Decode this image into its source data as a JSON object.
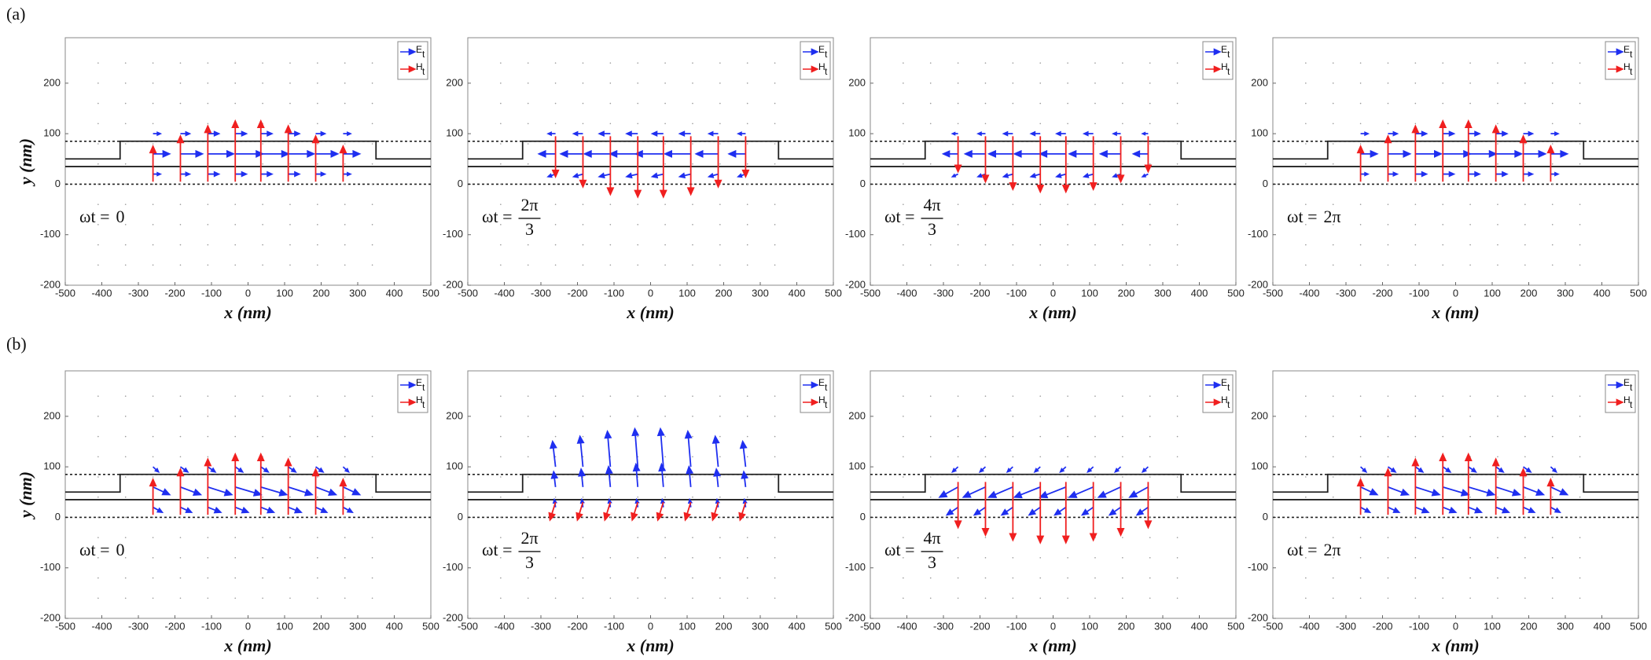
{
  "panel_labels": [
    "(a)",
    "(b)"
  ],
  "chart_data": [
    {
      "type": "quiver",
      "xlabel": "x (nm)",
      "ylabel": "y (nm)",
      "omega": "ωt =",
      "phase": "0",
      "xlim": [
        -500,
        500
      ],
      "ylim": [
        -200,
        290
      ],
      "xticks": [
        -500,
        -400,
        -300,
        -200,
        -100,
        0,
        100,
        200,
        300,
        400,
        500
      ],
      "yticks": [
        -200,
        -100,
        0,
        100,
        200
      ],
      "x": [
        -260,
        -185,
        -110,
        -35,
        35,
        110,
        185,
        260
      ],
      "rows": [
        100,
        60,
        20
      ],
      "series": [
        {
          "name": "E",
          "sub": "t",
          "color": "#1f2ff0",
          "u": [
            [
              20,
              25,
              30,
              30,
              30,
              30,
              25,
              20
            ],
            [
              45,
              60,
              70,
              75,
              75,
              70,
              60,
              45
            ],
            [
              20,
              25,
              30,
              30,
              30,
              30,
              25,
              20
            ]
          ],
          "v": [
            [
              0,
              0,
              0,
              0,
              0,
              0,
              0,
              0
            ],
            [
              0,
              0,
              0,
              0,
              0,
              0,
              0,
              0
            ],
            [
              0,
              0,
              0,
              0,
              0,
              0,
              0,
              0
            ]
          ]
        },
        {
          "name": "H",
          "sub": "t",
          "color": "#f01f1f",
          "y": 5,
          "u": [
            0,
            0,
            0,
            0,
            0,
            0,
            0,
            0
          ],
          "v": [
            70,
            90,
            110,
            120,
            120,
            110,
            90,
            70
          ]
        }
      ]
    },
    {
      "type": "quiver",
      "xlabel": "x (nm)",
      "omega": "ωt =",
      "phase": {
        "numerator": "2π",
        "denominator": "3"
      },
      "xlim": [
        -500,
        500
      ],
      "ylim": [
        -200,
        290
      ],
      "xticks": [
        -500,
        -400,
        -300,
        -200,
        -100,
        0,
        100,
        200,
        300,
        400,
        500
      ],
      "yticks": [
        -200,
        -100,
        0,
        100,
        200
      ],
      "x": [
        -260,
        -185,
        -110,
        -35,
        35,
        110,
        185,
        260
      ],
      "rows": [
        100,
        60,
        20
      ],
      "series": [
        {
          "name": "E",
          "sub": "t",
          "color": "#1f2ff0",
          "u": [
            [
              -20,
              -25,
              -30,
              -30,
              -30,
              -30,
              -25,
              -20
            ],
            [
              -45,
              -60,
              -70,
              -75,
              -75,
              -70,
              -60,
              -45
            ],
            [
              -20,
              -25,
              -30,
              -30,
              -30,
              -30,
              -25,
              -20
            ]
          ],
          "v": [
            [
              0,
              0,
              0,
              0,
              0,
              0,
              0,
              0
            ],
            [
              0,
              0,
              0,
              0,
              0,
              0,
              0,
              0
            ],
            [
              -5,
              -5,
              -5,
              -5,
              -5,
              -5,
              -5,
              -5
            ]
          ]
        },
        {
          "name": "H",
          "sub": "t",
          "color": "#f01f1f",
          "y": 95,
          "u": [
            0,
            0,
            0,
            0,
            0,
            0,
            0,
            0
          ],
          "v": [
            -80,
            -100,
            -115,
            -120,
            -120,
            -115,
            -100,
            -80
          ]
        }
      ]
    },
    {
      "type": "quiver",
      "xlabel": "x (nm)",
      "omega": "ωt =",
      "phase": {
        "numerator": "4π",
        "denominator": "3"
      },
      "xlim": [
        -500,
        500
      ],
      "ylim": [
        -200,
        290
      ],
      "xticks": [
        -500,
        -400,
        -300,
        -200,
        -100,
        0,
        100,
        200,
        300,
        400,
        500
      ],
      "yticks": [
        -200,
        -100,
        0,
        100,
        200
      ],
      "x": [
        -260,
        -185,
        -110,
        -35,
        35,
        110,
        185,
        260
      ],
      "rows": [
        100,
        60,
        20
      ],
      "series": [
        {
          "name": "E",
          "sub": "t",
          "color": "#1f2ff0",
          "u": [
            [
              -15,
              -20,
              -25,
              -25,
              -25,
              -25,
              -20,
              -15
            ],
            [
              -40,
              -55,
              -65,
              -70,
              -70,
              -65,
              -55,
              -40
            ],
            [
              -15,
              -20,
              -25,
              -25,
              -25,
              -25,
              -20,
              -15
            ]
          ],
          "v": [
            [
              0,
              0,
              0,
              0,
              0,
              0,
              0,
              0
            ],
            [
              0,
              0,
              0,
              0,
              0,
              0,
              0,
              0
            ],
            [
              -5,
              -5,
              -5,
              -5,
              -5,
              -5,
              -5,
              -5
            ]
          ]
        },
        {
          "name": "H",
          "sub": "t",
          "color": "#f01f1f",
          "y": 95,
          "u": [
            0,
            0,
            0,
            0,
            0,
            0,
            0,
            0
          ],
          "v": [
            -70,
            -90,
            -105,
            -110,
            -110,
            -105,
            -90,
            -70
          ]
        }
      ]
    },
    {
      "type": "quiver",
      "xlabel": "x (nm)",
      "omega": "ωt =",
      "phase": "2π",
      "xlim": [
        -500,
        500
      ],
      "ylim": [
        -200,
        290
      ],
      "xticks": [
        -500,
        -400,
        -300,
        -200,
        -100,
        0,
        100,
        200,
        300,
        400,
        500
      ],
      "yticks": [
        -200,
        -100,
        0,
        100,
        200
      ],
      "x": [
        -260,
        -185,
        -110,
        -35,
        35,
        110,
        185,
        260
      ],
      "rows": [
        100,
        60,
        20
      ],
      "series": [
        {
          "name": "E",
          "sub": "t",
          "color": "#1f2ff0",
          "u": [
            [
              20,
              25,
              30,
              30,
              30,
              30,
              25,
              20
            ],
            [
              45,
              60,
              70,
              75,
              75,
              70,
              60,
              45
            ],
            [
              20,
              25,
              30,
              30,
              30,
              30,
              25,
              20
            ]
          ],
          "v": [
            [
              0,
              0,
              0,
              0,
              0,
              0,
              0,
              0
            ],
            [
              0,
              0,
              0,
              0,
              0,
              0,
              0,
              0
            ],
            [
              0,
              0,
              0,
              0,
              0,
              0,
              0,
              0
            ]
          ]
        },
        {
          "name": "H",
          "sub": "t",
          "color": "#f01f1f",
          "y": 5,
          "u": [
            0,
            0,
            0,
            0,
            0,
            0,
            0,
            0
          ],
          "v": [
            70,
            90,
            110,
            120,
            120,
            110,
            90,
            70
          ]
        }
      ]
    },
    {
      "type": "quiver",
      "xlabel": "x (nm)",
      "ylabel": "y (nm)",
      "omega": "ωt =",
      "phase": "0",
      "xlim": [
        -500,
        500
      ],
      "ylim": [
        -200,
        290
      ],
      "xticks": [
        -500,
        -400,
        -300,
        -200,
        -100,
        0,
        100,
        200,
        300,
        400,
        500
      ],
      "yticks": [
        -200,
        -100,
        0,
        100,
        200
      ],
      "x": [
        -260,
        -185,
        -110,
        -35,
        35,
        110,
        185,
        260
      ],
      "rows": [
        100,
        60,
        20
      ],
      "series": [
        {
          "name": "E",
          "sub": "t",
          "color": "#1f2ff0",
          "u": [
            [
              15,
              20,
              20,
              20,
              20,
              20,
              20,
              15
            ],
            [
              45,
              55,
              65,
              70,
              70,
              65,
              55,
              45
            ],
            [
              25,
              30,
              35,
              35,
              35,
              35,
              30,
              25
            ]
          ],
          "v": [
            [
              -10,
              -10,
              -10,
              -10,
              -10,
              -10,
              -10,
              -10
            ],
            [
              -15,
              -15,
              -15,
              -15,
              -15,
              -15,
              -15,
              -15
            ],
            [
              -10,
              -10,
              -10,
              -10,
              -10,
              -10,
              -10,
              -10
            ]
          ]
        },
        {
          "name": "H",
          "sub": "t",
          "color": "#f01f1f",
          "y": 5,
          "u": [
            0,
            0,
            0,
            0,
            0,
            0,
            0,
            0
          ],
          "v": [
            70,
            90,
            110,
            120,
            120,
            110,
            90,
            70
          ]
        }
      ]
    },
    {
      "type": "quiver",
      "xlabel": "x (nm)",
      "omega": "ωt =",
      "phase": {
        "numerator": "2π",
        "denominator": "3"
      },
      "xlim": [
        -500,
        500
      ],
      "ylim": [
        -200,
        290
      ],
      "xticks": [
        -500,
        -400,
        -300,
        -200,
        -100,
        0,
        100,
        200,
        300,
        400,
        500
      ],
      "yticks": [
        -200,
        -100,
        0,
        100,
        200
      ],
      "x": [
        -260,
        -185,
        -110,
        -35,
        35,
        110,
        185,
        260
      ],
      "rows": [
        100,
        60,
        20
      ],
      "series": [
        {
          "name": "E",
          "sub": "t",
          "color": "#1f2ff0",
          "u": [
            [
              -8,
              -8,
              -8,
              -8,
              -8,
              -8,
              -8,
              -8
            ],
            [
              -5,
              -5,
              -5,
              -5,
              -5,
              -5,
              -5,
              -5
            ],
            [
              -3,
              -3,
              -3,
              -3,
              -3,
              -3,
              -3,
              -3
            ]
          ],
          "v": [
            [
              50,
              60,
              70,
              75,
              75,
              70,
              60,
              50
            ],
            [
              30,
              35,
              40,
              45,
              45,
              40,
              35,
              30
            ],
            [
              15,
              15,
              15,
              15,
              15,
              15,
              15,
              15
            ]
          ]
        },
        {
          "name": "H",
          "sub": "t",
          "color": "#f01f1f",
          "y": 30,
          "u": [
            -15,
            -15,
            -15,
            -15,
            -15,
            -15,
            -15,
            -15
          ],
          "v": [
            -35,
            -35,
            -35,
            -35,
            -35,
            -35,
            -35,
            -35
          ]
        }
      ]
    },
    {
      "type": "quiver",
      "xlabel": "x (nm)",
      "omega": "ωt =",
      "phase": {
        "numerator": "4π",
        "denominator": "3"
      },
      "xlim": [
        -500,
        500
      ],
      "ylim": [
        -200,
        290
      ],
      "xticks": [
        -500,
        -400,
        -300,
        -200,
        -100,
        0,
        100,
        200,
        300,
        400,
        500
      ],
      "yticks": [
        -200,
        -100,
        0,
        100,
        200
      ],
      "x": [
        -260,
        -185,
        -110,
        -35,
        35,
        110,
        185,
        260
      ],
      "rows": [
        100,
        60,
        20
      ],
      "series": [
        {
          "name": "E",
          "sub": "t",
          "color": "#1f2ff0",
          "u": [
            [
              -15,
              -15,
              -15,
              -15,
              -15,
              -15,
              -15,
              -15
            ],
            [
              -50,
              -60,
              -65,
              -70,
              -70,
              -65,
              -60,
              -50
            ],
            [
              -30,
              -30,
              -30,
              -30,
              -30,
              -30,
              -30,
              -30
            ]
          ],
          "v": [
            [
              -10,
              -10,
              -10,
              -10,
              -10,
              -10,
              -10,
              -10
            ],
            [
              -20,
              -20,
              -20,
              -20,
              -20,
              -20,
              -20,
              -20
            ],
            [
              -15,
              -15,
              -15,
              -15,
              -15,
              -15,
              -15,
              -15
            ]
          ]
        },
        {
          "name": "H",
          "sub": "t",
          "color": "#f01f1f",
          "y": 70,
          "u": [
            0,
            0,
            0,
            0,
            0,
            0,
            0,
            0
          ],
          "v": [
            -90,
            -105,
            -115,
            -120,
            -120,
            -115,
            -105,
            -90
          ]
        }
      ]
    },
    {
      "type": "quiver",
      "xlabel": "x (nm)",
      "omega": "ωt =",
      "phase": "2π",
      "xlim": [
        -500,
        500
      ],
      "ylim": [
        -200,
        290
      ],
      "xticks": [
        -500,
        -400,
        -300,
        -200,
        -100,
        0,
        100,
        200,
        300,
        400,
        500
      ],
      "yticks": [
        -200,
        -100,
        0,
        100,
        200
      ],
      "x": [
        -260,
        -185,
        -110,
        -35,
        35,
        110,
        185,
        260
      ],
      "rows": [
        100,
        60,
        20
      ],
      "series": [
        {
          "name": "E",
          "sub": "t",
          "color": "#1f2ff0",
          "u": [
            [
              15,
              20,
              20,
              20,
              20,
              20,
              20,
              15
            ],
            [
              45,
              55,
              65,
              70,
              70,
              65,
              55,
              45
            ],
            [
              25,
              30,
              35,
              35,
              35,
              35,
              30,
              25
            ]
          ],
          "v": [
            [
              -10,
              -10,
              -10,
              -10,
              -10,
              -10,
              -10,
              -10
            ],
            [
              -15,
              -15,
              -15,
              -15,
              -15,
              -15,
              -15,
              -15
            ],
            [
              -10,
              -10,
              -10,
              -10,
              -10,
              -10,
              -10,
              -10
            ]
          ]
        },
        {
          "name": "H",
          "sub": "t",
          "color": "#f01f1f",
          "y": 5,
          "u": [
            0,
            0,
            0,
            0,
            0,
            0,
            0,
            0
          ],
          "v": [
            70,
            90,
            110,
            120,
            120,
            110,
            90,
            70
          ]
        }
      ]
    }
  ]
}
